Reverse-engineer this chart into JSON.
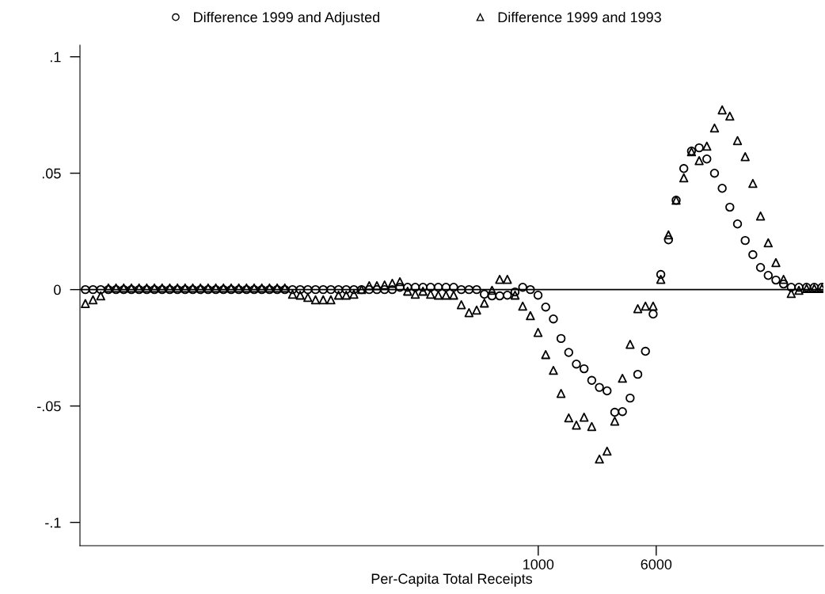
{
  "chart_data": {
    "type": "scatter",
    "xlabel": "Per-Capita Total Receipts",
    "log": "x",
    "x": [
      1.031,
      1.158,
      1.302,
      1.463,
      1.643,
      1.847,
      2.075,
      2.331,
      2.619,
      2.943,
      3.307,
      3.715,
      4.174,
      4.69,
      5.269,
      5.92,
      6.652,
      7.473,
      8.397,
      9.434,
      10.6,
      11.91,
      13.38,
      15.03,
      16.89,
      18.98,
      21.32,
      23.96,
      26.92,
      30.24,
      33.98,
      38.18,
      42.9,
      48.2,
      54.15,
      60.84,
      68.36,
      76.81,
      86.3,
      96.98,
      109,
      122.4,
      137.6,
      154.6,
      173.7,
      195.1,
      219.3,
      246.4,
      276.8,
      311,
      349.5,
      392.6,
      441.2,
      495.7,
      556.9,
      625.8,
      703.1,
      790,
      887.6,
      997,
      1120,
      1259,
      1414,
      1589,
      1785,
      2006,
      2254,
      2532,
      2845,
      3197,
      3592,
      4036,
      4535,
      5095,
      5725,
      6432,
      7227,
      8120,
      9123,
      10250,
      11520,
      12940,
      14540,
      16340,
      18350,
      20620,
      23170,
      26030,
      29250,
      32870,
      36930,
      41490,
      46620,
      52380,
      58850,
      66130,
      74300
    ],
    "series": [
      {
        "name": "Difference 1999 and Adjusted",
        "color": "#000000",
        "marker": "circle",
        "values": [
          0,
          0,
          0,
          0,
          0,
          0,
          0,
          0,
          0,
          0,
          0,
          0,
          0,
          0,
          0,
          0,
          0,
          0,
          0,
          0,
          0,
          0,
          0,
          0,
          0,
          0,
          0,
          0,
          0,
          0,
          0,
          0,
          0,
          0,
          0,
          0,
          0,
          0,
          0,
          0,
          0,
          0.001,
          0.001,
          0.001,
          0.001,
          0.001,
          0.001,
          0.001,
          0.001,
          0,
          0,
          0,
          -0.002,
          -0.0027,
          -0.0027,
          -0.0024,
          -0.001,
          0.001,
          0,
          -0.0024,
          -0.0075,
          -0.0126,
          -0.021,
          -0.027,
          -0.032,
          -0.034,
          -0.039,
          -0.042,
          -0.0435,
          -0.0527,
          -0.0524,
          -0.0466,
          -0.0364,
          -0.0265,
          -0.0105,
          0.0065,
          0.0214,
          0.0384,
          0.052,
          0.0595,
          0.0609,
          0.0561,
          0.05,
          0.0435,
          0.0354,
          0.0282,
          0.0211,
          0.015,
          0.0095,
          0.0061,
          0.0041,
          0.0024,
          0.001,
          0.001,
          0.001,
          0.001,
          0.001
        ]
      },
      {
        "name": "Difference 1999 and 1993",
        "color": "#000000",
        "marker": "triangle",
        "values": [
          -0.006,
          -0.0044,
          -0.0027,
          0.0007,
          0.0007,
          0.0007,
          0.0007,
          0.0007,
          0.0007,
          0.0007,
          0.0007,
          0.0007,
          0.0007,
          0.0007,
          0.0007,
          0.0007,
          0.0007,
          0.0007,
          0.0007,
          0.0007,
          0.0007,
          0.0007,
          0.0007,
          0.0007,
          0.0007,
          0.0007,
          0.0007,
          -0.002,
          -0.0024,
          -0.0034,
          -0.0044,
          -0.0044,
          -0.0044,
          -0.0024,
          -0.0024,
          -0.002,
          0,
          0.0017,
          0.0017,
          0.002,
          0.0027,
          0.0034,
          -0.0007,
          -0.002,
          -0.0007,
          -0.002,
          -0.0024,
          -0.0024,
          -0.0024,
          -0.0065,
          -0.0099,
          -0.0088,
          -0.0058,
          -0.0003,
          0.0044,
          0.0044,
          -0.0024,
          -0.0071,
          -0.0112,
          -0.0184,
          -0.0279,
          -0.0347,
          -0.0446,
          -0.0551,
          -0.0582,
          -0.0548,
          -0.0588,
          -0.0728,
          -0.0694,
          -0.0565,
          -0.0381,
          -0.0235,
          -0.0082,
          -0.0071,
          -0.0071,
          0.0044,
          0.0235,
          0.0384,
          0.048,
          0.0592,
          0.0554,
          0.0616,
          0.0694,
          0.0772,
          0.0745,
          0.064,
          0.0571,
          0.0456,
          0.0316,
          0.0201,
          0.0116,
          0.0044,
          -0.0017,
          -0.0003,
          0.0005,
          0.0005,
          0.0005
        ]
      }
    ],
    "xlim": [
      0.95,
      76000
    ],
    "xticks": [
      1000,
      6000
    ],
    "ylim": [
      -0.11,
      0.105
    ],
    "yticks": [
      {
        "value": 0.1,
        "label": ".1"
      },
      {
        "value": 0.05,
        "label": ".05"
      },
      0,
      {
        "value": -0.05,
        "label": "-.05"
      },
      {
        "value": -0.1,
        "label": "-.1"
      }
    ],
    "ref_lines": [
      {
        "axis": "y",
        "value": 0,
        "color": "#000000"
      }
    ],
    "grid": false,
    "legend": "top"
  }
}
